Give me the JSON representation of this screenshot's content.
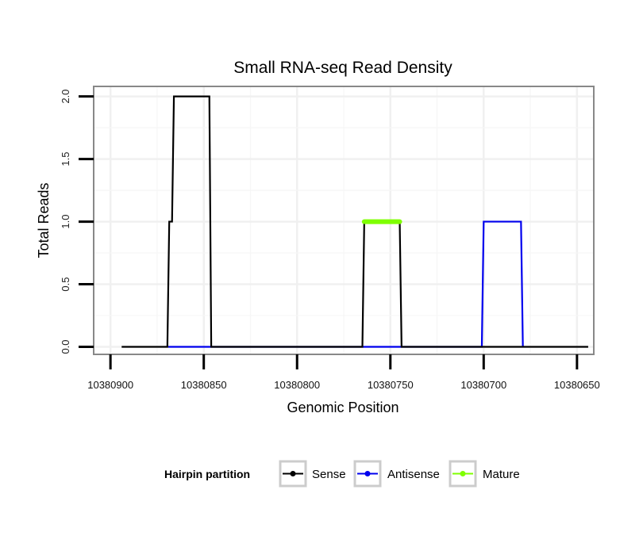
{
  "chart_data": {
    "type": "line",
    "title": "Small RNA-seq Read Density",
    "xlabel": "Genomic Position",
    "ylabel": "Total Reads",
    "x_reversed": true,
    "xlim": [
      10380909,
      10380641
    ],
    "ylim": [
      -0.06,
      2.08
    ],
    "x_ticks": [
      10380900,
      10380850,
      10380800,
      10380750,
      10380700,
      10380650
    ],
    "x_tick_labels": [
      "10380900",
      "10380850",
      "10380800",
      "10380750",
      "10380700",
      "10380650"
    ],
    "y_ticks": [
      0.0,
      0.5,
      1.0,
      1.5,
      2.0
    ],
    "y_tick_labels": [
      "0.0",
      "0.5",
      "1.0",
      "1.5",
      "2.0"
    ],
    "grid": true,
    "legend": {
      "title": "Hairpin partition",
      "position": "bottom",
      "entries": [
        {
          "name": "Sense",
          "color": "#000000"
        },
        {
          "name": "Antisense",
          "color": "#0000ee"
        },
        {
          "name": "Mature",
          "color": "#7fff00"
        }
      ]
    },
    "series": [
      {
        "name": "Sense",
        "color": "#000000",
        "points": [
          [
            10380894,
            0
          ],
          [
            10380869.5,
            0
          ],
          [
            10380868.5,
            1
          ],
          [
            10380867,
            1
          ],
          [
            10380866,
            2
          ],
          [
            10380847,
            2
          ],
          [
            10380846,
            0
          ],
          [
            10380765,
            0
          ],
          [
            10380764,
            1
          ],
          [
            10380745,
            1
          ],
          [
            10380744,
            0
          ],
          [
            10380644,
            0
          ]
        ]
      },
      {
        "name": "Antisense",
        "color": "#0000ee",
        "points": [
          [
            10380869,
            0
          ],
          [
            10380846,
            0
          ],
          [
            10380765,
            0
          ],
          [
            10380744,
            0
          ],
          [
            10380701,
            0
          ],
          [
            10380700,
            1
          ],
          [
            10380680,
            1
          ],
          [
            10380679,
            0
          ]
        ]
      },
      {
        "name": "Mature",
        "color": "#7fff00",
        "points": [
          [
            10380764,
            1
          ],
          [
            10380745,
            1
          ]
        ]
      }
    ]
  }
}
